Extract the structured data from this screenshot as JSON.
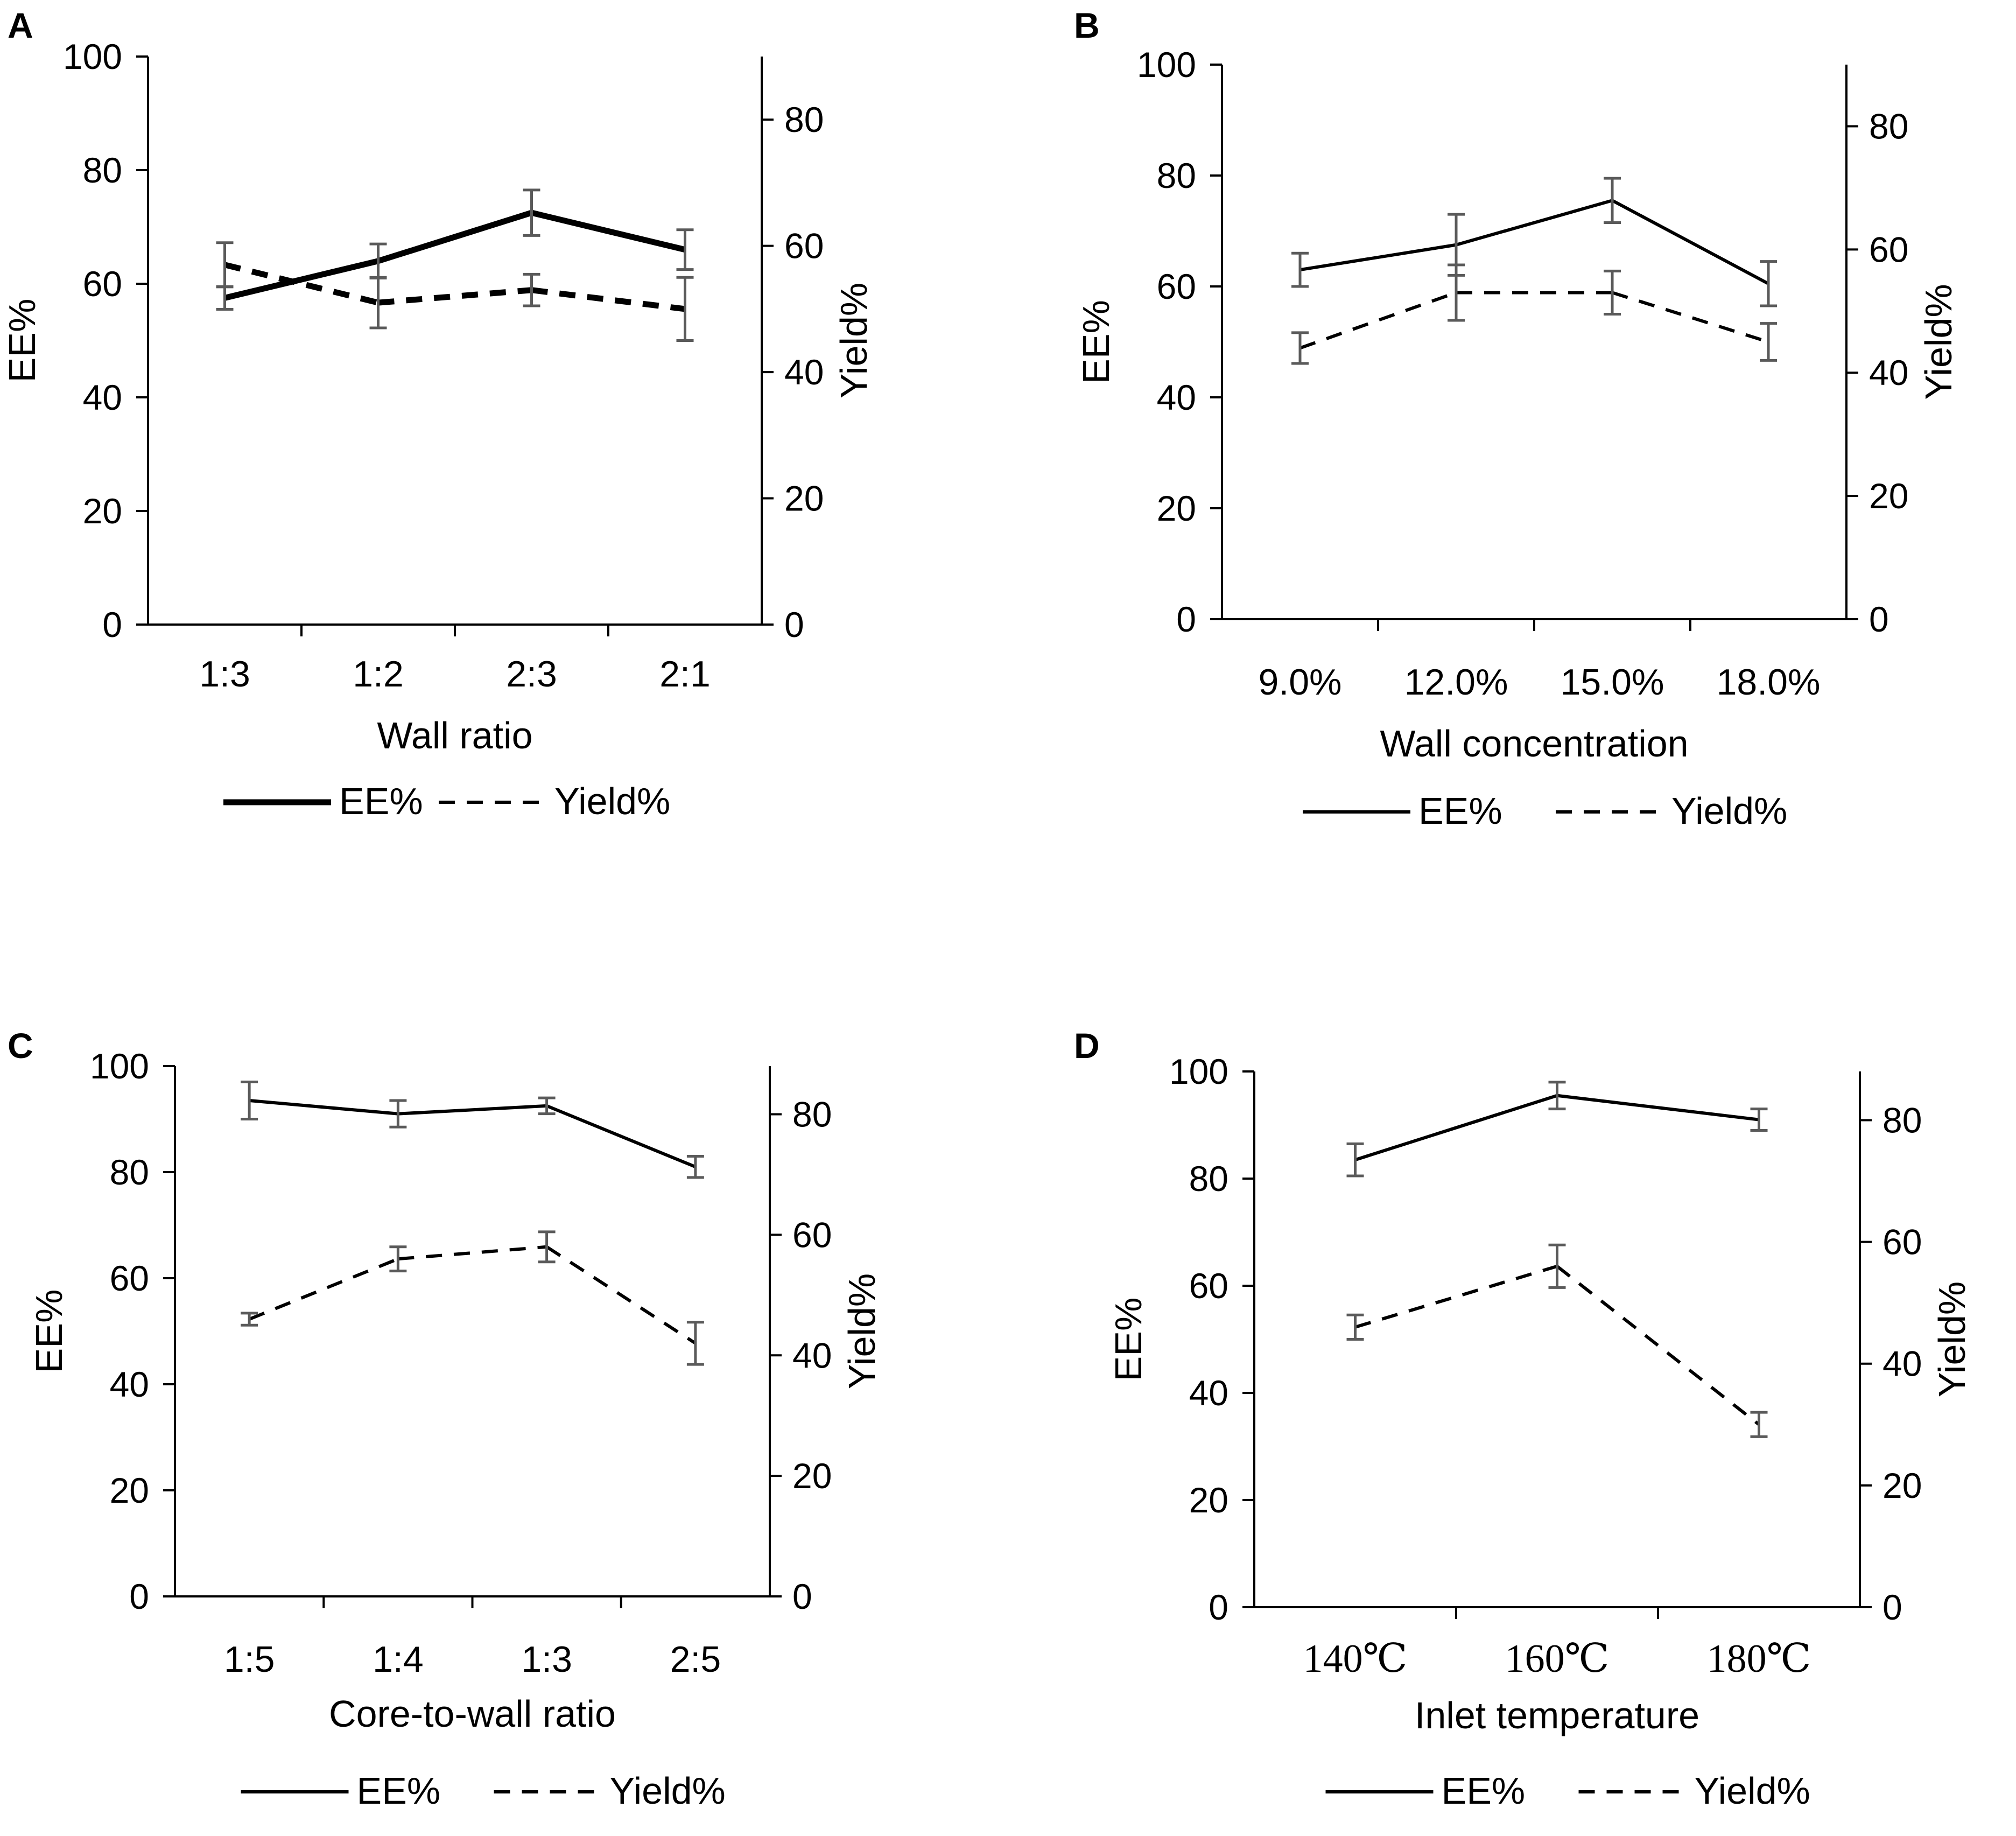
{
  "chart_data": [
    {
      "panel": "A",
      "type": "line",
      "xlabel": "Wall ratio",
      "ylabel": "EE%",
      "y2label": "Yield%",
      "categories": [
        "1:3",
        "1:2",
        "2:3",
        "2:1"
      ],
      "ylim": [
        0,
        100
      ],
      "y2lim": [
        0,
        90
      ],
      "yticks": [
        0,
        20,
        40,
        60,
        80,
        100
      ],
      "y2ticks": [
        0,
        20,
        40,
        60,
        80
      ],
      "heavy": true,
      "series": [
        {
          "name": "EE%",
          "axis": "left",
          "style": "solid",
          "values": [
            57.5,
            64,
            72.5,
            66
          ],
          "errors": [
            2,
            3,
            4,
            3.5
          ]
        },
        {
          "name": "Yield%",
          "axis": "right",
          "style": "dashed",
          "values": [
            57,
            51,
            53,
            50
          ],
          "errors": [
            3.5,
            4,
            2.5,
            5
          ]
        }
      ],
      "legend": [
        "EE%",
        "Yield%"
      ]
    },
    {
      "panel": "B",
      "type": "line",
      "xlabel": "Wall concentration",
      "ylabel": "EE%",
      "y2label": "Yield%",
      "categories": [
        "9.0%",
        "12.0%",
        "15.0%",
        "18.0%"
      ],
      "ylim": [
        0,
        100
      ],
      "y2lim": [
        0,
        90
      ],
      "yticks": [
        0,
        20,
        40,
        60,
        80,
        100
      ],
      "y2ticks": [
        0,
        20,
        40,
        60,
        80
      ],
      "heavy": false,
      "series": [
        {
          "name": "EE%",
          "axis": "left",
          "style": "solid",
          "values": [
            63,
            67.5,
            75.5,
            60.5
          ],
          "errors": [
            3,
            5.5,
            4,
            4
          ]
        },
        {
          "name": "Yield%",
          "axis": "right",
          "style": "dashed",
          "values": [
            44,
            53,
            53,
            45
          ],
          "errors": [
            2.5,
            4.5,
            3.5,
            3
          ]
        }
      ],
      "legend": [
        "EE%",
        "Yield%"
      ]
    },
    {
      "panel": "C",
      "type": "line",
      "xlabel": "Core-to-wall ratio",
      "ylabel": "EE%",
      "y2label": "Yield%",
      "categories": [
        "1:5",
        "1:4",
        "1:3",
        "2:5"
      ],
      "ylim": [
        0,
        100
      ],
      "y2lim": [
        0,
        88
      ],
      "yticks": [
        0,
        20,
        40,
        60,
        80,
        100
      ],
      "y2ticks": [
        0,
        20,
        40,
        60,
        80
      ],
      "heavy": false,
      "series": [
        {
          "name": "EE%",
          "axis": "left",
          "style": "solid",
          "values": [
            93.5,
            91,
            92.5,
            81
          ],
          "errors": [
            3.5,
            2.5,
            1.5,
            2
          ]
        },
        {
          "name": "Yield%",
          "axis": "right",
          "style": "dashed",
          "values": [
            46,
            56,
            58,
            42
          ],
          "errors": [
            1,
            2,
            2.5,
            3.5
          ]
        }
      ],
      "legend": [
        "EE%",
        "Yield%"
      ]
    },
    {
      "panel": "D",
      "type": "line",
      "xlabel": "Inlet temperature",
      "ylabel": "EE%",
      "y2label": "Yield%",
      "categories": [
        "140℃",
        "160℃",
        "180℃"
      ],
      "ylim": [
        0,
        100
      ],
      "y2lim": [
        0,
        88
      ],
      "yticks": [
        0,
        20,
        40,
        60,
        80,
        100
      ],
      "y2ticks": [
        0,
        20,
        40,
        60,
        80
      ],
      "heavy": false,
      "series": [
        {
          "name": "EE%",
          "axis": "left",
          "style": "solid",
          "values": [
            83.5,
            95.5,
            91
          ],
          "errors": [
            3,
            2.5,
            2
          ]
        },
        {
          "name": "Yield%",
          "axis": "right",
          "style": "dashed",
          "values": [
            46,
            56,
            30
          ],
          "errors": [
            2,
            3.5,
            2
          ]
        }
      ],
      "legend": [
        "EE%",
        "Yield%"
      ]
    }
  ]
}
